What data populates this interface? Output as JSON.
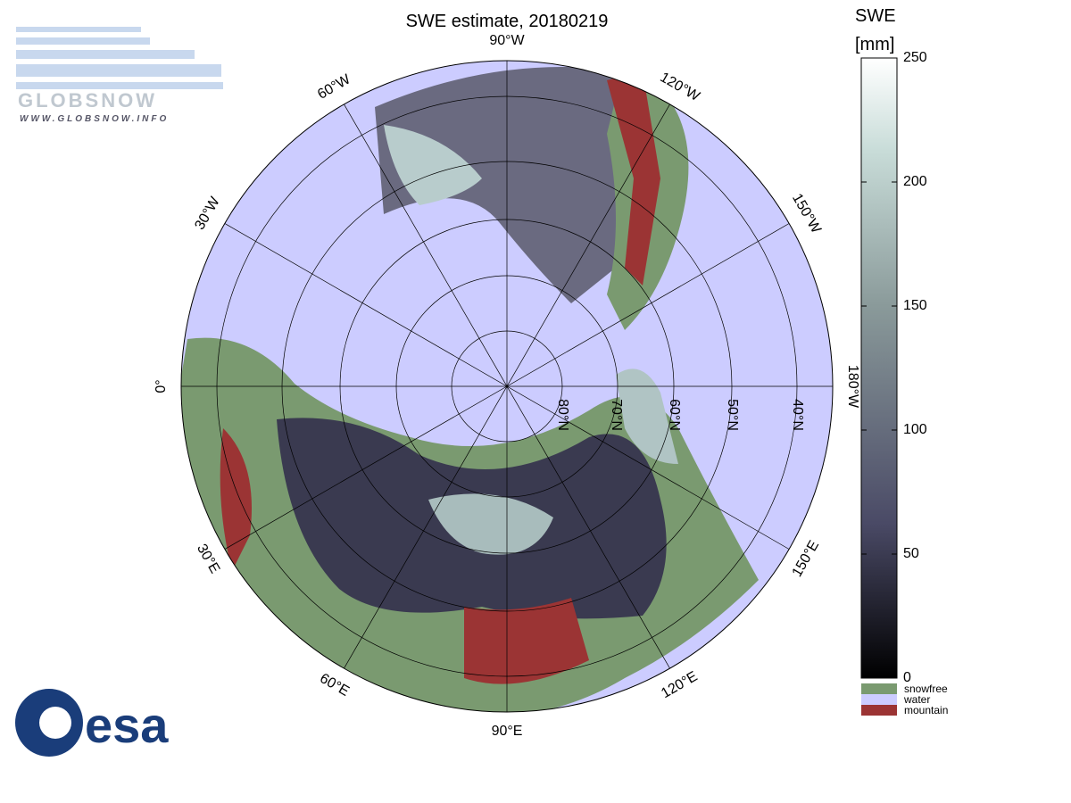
{
  "map": {
    "title": "SWE estimate, 20180219",
    "meridian_labels": [
      "90°W",
      "120°W",
      "150°W",
      "180°W",
      "150°E",
      "120°E",
      "90°E",
      "60°E",
      "30°E",
      "0°",
      "30°W",
      "60°W"
    ],
    "parallel_labels": [
      "80°N",
      "70°N",
      "60°N",
      "50°N",
      "40°N"
    ]
  },
  "colorbar": {
    "title": [
      "SWE",
      "[mm]"
    ],
    "lim": [
      0,
      250
    ],
    "ticks": [
      0,
      50,
      100,
      150,
      200,
      250
    ],
    "legend": [
      {
        "label": "snowfree",
        "color": "#7a9a70"
      },
      {
        "label": "water",
        "color": "#ccccff"
      },
      {
        "label": "mountain",
        "color": "#9b3434"
      }
    ]
  },
  "logos": {
    "globsnow": "GLOBSNOW",
    "url": "WWW.GLOBSNOW.INFO",
    "esa": "esa"
  }
}
